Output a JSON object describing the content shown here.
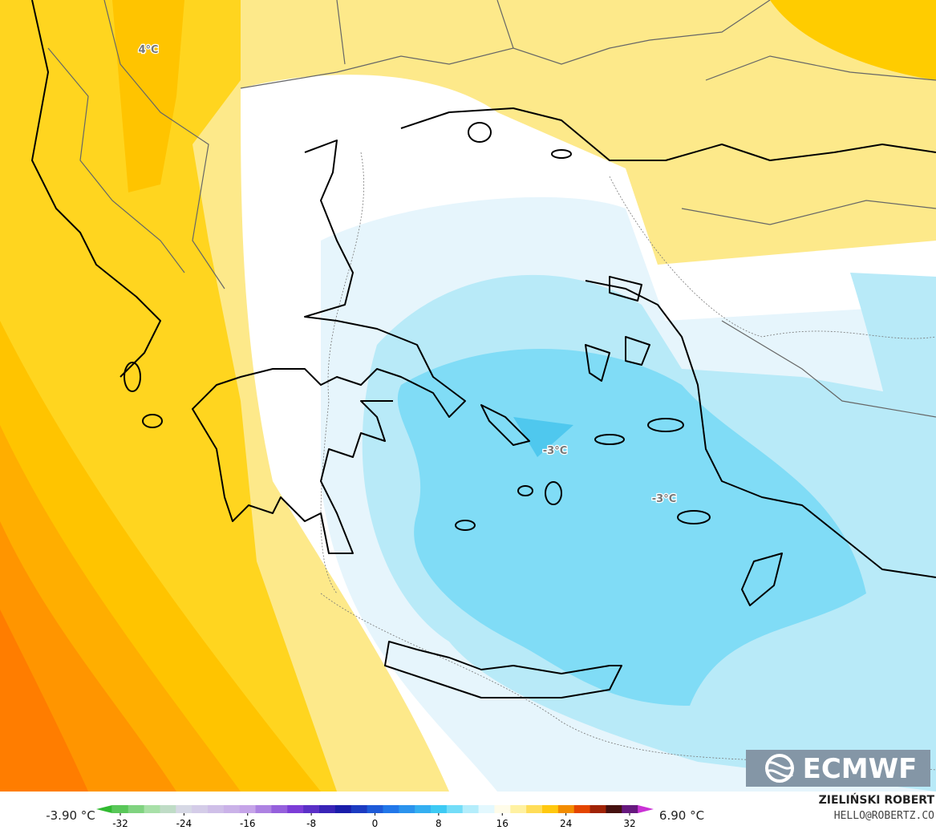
{
  "map_labels": [
    "4°C",
    "-3°C",
    "-3°C"
  ],
  "colorbar": {
    "min_label": "-3.90 °C",
    "max_label": "6.90 °C",
    "ticks": [
      -32,
      -24,
      -16,
      -8,
      0,
      8,
      16,
      24,
      32
    ]
  },
  "logo": "ECMWF",
  "credit": {
    "name": "ZIELIŃSKI ROBERT",
    "contact": "HELLO@ROBERTZ.CO"
  }
}
